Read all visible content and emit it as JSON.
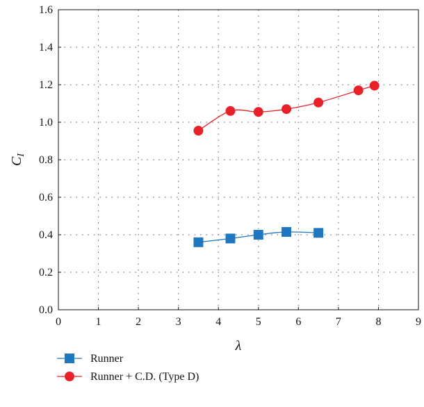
{
  "chart_data": {
    "type": "line",
    "title": "",
    "xlabel": "λ",
    "ylabel_main": "C",
    "ylabel_sub": "I",
    "xlim": [
      0,
      9
    ],
    "ylim": [
      0.0,
      1.6
    ],
    "xticks": [
      0,
      1,
      2,
      3,
      4,
      5,
      6,
      7,
      8,
      9
    ],
    "yticks": [
      0.0,
      0.2,
      0.4,
      0.6,
      0.8,
      1.0,
      1.2,
      1.4,
      1.6
    ],
    "xtick_labels": [
      "0",
      "1",
      "2",
      "3",
      "4",
      "5",
      "6",
      "7",
      "8",
      "9"
    ],
    "ytick_labels": [
      "0.0",
      "0.2",
      "0.4",
      "0.6",
      "0.8",
      "1.0",
      "1.2",
      "1.4",
      "1.6"
    ],
    "grid": true,
    "legend_position": "bottom-left, below plot",
    "series": [
      {
        "name": "Runner",
        "color": "#1f77c0",
        "marker": "square",
        "x": [
          3.5,
          4.3,
          5.0,
          5.7,
          6.5
        ],
        "y": [
          0.36,
          0.38,
          0.4,
          0.415,
          0.41
        ]
      },
      {
        "name": "Runner + C.D.  (Type D)",
        "color": "#e8202a",
        "marker": "circle",
        "x": [
          3.5,
          4.3,
          5.0,
          5.7,
          6.5,
          7.5,
          7.9
        ],
        "y": [
          0.955,
          1.06,
          1.055,
          1.07,
          1.105,
          1.17,
          1.195
        ]
      }
    ]
  }
}
